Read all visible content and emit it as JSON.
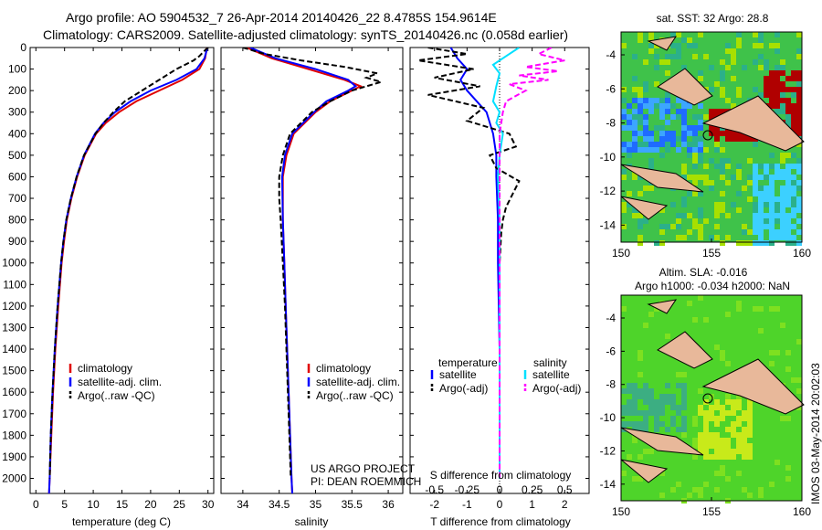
{
  "header": {
    "line1": "Argo profile: AO 5904532_7 26-Apr-2014 20140426_22 8.4785S 154.9614E",
    "line2": "Climatology: CARS2009. Satellite-adjusted climatology: synTS_20140426.nc (0.058d earlier)"
  },
  "colors": {
    "climatology": "#e00000",
    "satellite": "#0000ff",
    "argo": "#000000",
    "sat_salinity": "#00e0ff",
    "argo_adj_s": "#ff00ff"
  },
  "chart_data": [
    {
      "id": "temperature",
      "type": "line",
      "xlabel": "temperature (deg C)",
      "xlim": [
        -1,
        31
      ],
      "ylim": [
        0,
        2070
      ],
      "xticks": [
        0,
        5,
        10,
        15,
        20,
        25,
        30
      ],
      "xticklabels": [
        "0",
        "5",
        "10",
        "15",
        "20",
        "25",
        "30"
      ],
      "yticks": [
        0,
        100,
        200,
        300,
        400,
        500,
        600,
        700,
        800,
        900,
        1000,
        1100,
        1200,
        1300,
        1400,
        1500,
        1600,
        1700,
        1800,
        1900,
        2000
      ],
      "yticklabels": [
        "0",
        "100",
        "200",
        "300",
        "400",
        "500",
        "600",
        "700",
        "800",
        "900",
        "1000",
        "1100",
        "1200",
        "1300",
        "1400",
        "1500",
        "1600",
        "1700",
        "1800",
        "1900",
        "2000"
      ],
      "series": [
        {
          "name": "climatology",
          "color": "#e00000",
          "dash": false,
          "depth": [
            0,
            50,
            100,
            150,
            200,
            250,
            300,
            350,
            400,
            500,
            600,
            700,
            800,
            900,
            1000,
            1200,
            1400,
            1600,
            1800,
            2000,
            2070
          ],
          "values": [
            29.8,
            29.5,
            28.5,
            25.5,
            21.5,
            17.5,
            14.5,
            12.2,
            10.5,
            8.5,
            7.2,
            6.2,
            5.4,
            4.9,
            4.5,
            3.9,
            3.4,
            3.0,
            2.7,
            2.4,
            2.3
          ]
        },
        {
          "name": "satellite-adj. clim.",
          "color": "#0000ff",
          "dash": false,
          "depth": [
            0,
            50,
            100,
            150,
            200,
            250,
            300,
            350,
            400,
            500,
            600,
            700,
            800,
            900,
            1000,
            1200,
            1400,
            1600,
            1800,
            2000,
            2070
          ],
          "values": [
            29.9,
            29.4,
            28.0,
            24.5,
            20.0,
            16.5,
            13.8,
            11.8,
            10.3,
            8.4,
            7.1,
            6.1,
            5.3,
            4.8,
            4.4,
            3.8,
            3.3,
            2.9,
            2.6,
            2.4,
            2.3
          ]
        },
        {
          "name": "Argo(..raw -QC)",
          "color": "#000000",
          "dash": true,
          "depth": [
            0,
            20,
            40,
            60,
            80,
            100,
            150,
            200,
            250,
            300,
            350,
            400,
            500,
            600,
            700,
            800,
            900,
            1000,
            1200,
            1400,
            1600,
            1800,
            2000
          ],
          "values": [
            30.0,
            29.2,
            28.5,
            27.5,
            26.0,
            24.5,
            21.5,
            18.5,
            15.5,
            13.5,
            11.8,
            10.4,
            8.4,
            7.1,
            6.1,
            5.3,
            4.8,
            4.4,
            3.8,
            3.3,
            2.9,
            2.6,
            2.4
          ]
        }
      ],
      "legend": [
        "climatology",
        "satellite-adj. clim.",
        "Argo(..raw -QC)"
      ]
    },
    {
      "id": "salinity",
      "type": "line",
      "xlabel": "salinity",
      "xlim": [
        33.7,
        36.2
      ],
      "ylim": [
        0,
        2070
      ],
      "xticks": [
        34,
        34.5,
        35,
        35.5,
        36
      ],
      "xticklabels": [
        "34",
        "34.5",
        "35",
        "35.5",
        "36"
      ],
      "series": [
        {
          "name": "climatology",
          "color": "#e00000",
          "dash": false,
          "depth": [
            0,
            50,
            100,
            150,
            180,
            200,
            250,
            300,
            350,
            400,
            500,
            600,
            800,
            1000,
            1200,
            1400,
            1600,
            1800,
            2000,
            2070
          ],
          "values": [
            34.05,
            34.4,
            34.9,
            35.4,
            35.62,
            35.5,
            35.2,
            35.0,
            34.85,
            34.7,
            34.6,
            34.55,
            34.55,
            34.57,
            34.59,
            34.61,
            34.63,
            34.65,
            34.67,
            34.68
          ]
        },
        {
          "name": "satellite-adj. clim.",
          "color": "#0000ff",
          "dash": false,
          "depth": [
            0,
            50,
            100,
            150,
            180,
            200,
            250,
            300,
            350,
            400,
            500,
            600,
            800,
            1000,
            1200,
            1400,
            1600,
            1800,
            2000,
            2070
          ],
          "values": [
            34.1,
            34.45,
            35.0,
            35.45,
            35.55,
            35.45,
            35.15,
            34.98,
            34.83,
            34.68,
            34.58,
            34.54,
            34.55,
            34.57,
            34.59,
            34.61,
            34.63,
            34.65,
            34.67,
            34.68
          ]
        },
        {
          "name": "Argo(..raw -QC)",
          "color": "#000000",
          "dash": true,
          "depth": [
            0,
            30,
            60,
            90,
            120,
            140,
            160,
            200,
            250,
            300,
            350,
            400,
            500,
            600,
            700,
            800,
            1000,
            1200,
            1400,
            1600,
            1800,
            2000
          ],
          "values": [
            34.0,
            34.3,
            34.8,
            35.4,
            35.85,
            35.7,
            35.9,
            35.5,
            35.2,
            34.95,
            34.8,
            34.65,
            34.55,
            34.5,
            34.5,
            34.52,
            34.55,
            34.58,
            34.6,
            34.62,
            34.64,
            34.66
          ]
        }
      ],
      "legend": [
        "climatology",
        "satellite-adj. clim.",
        "Argo(..raw -QC)"
      ],
      "annotation": [
        "US ARGO PROJECT",
        "PI: DEAN ROEMMICH"
      ]
    },
    {
      "id": "differences",
      "type": "line",
      "xlabel": "T difference from climatology",
      "xlabel_top": "S difference from climatology",
      "xlim": [
        -2.75,
        2.75
      ],
      "ylim": [
        0,
        2070
      ],
      "xticks": [
        -2,
        -1,
        0,
        1,
        2
      ],
      "xticklabels": [
        "-2",
        "-1",
        "0",
        "1",
        "2"
      ],
      "sticks_pos": [
        -2,
        -1,
        0,
        1,
        2
      ],
      "sticklabels": [
        "-0.5",
        "-0.25",
        "0",
        "0.25",
        "0.5"
      ],
      "series": [
        {
          "name": "T satellite",
          "color": "#0000ff",
          "dash": false,
          "depth": [
            0,
            50,
            100,
            150,
            200,
            300,
            350,
            400,
            500,
            600,
            800,
            1000,
            1400,
            1800,
            2000
          ],
          "values": [
            -1.5,
            -1.3,
            -1.0,
            -1.2,
            -1.0,
            -0.4,
            -0.3,
            -0.2,
            -0.1,
            -0.1,
            -0.05,
            -0.05,
            0.0,
            0.0,
            0.0
          ]
        },
        {
          "name": "T Argo(-adj)",
          "color": "#000000",
          "dash": true,
          "depth": [
            0,
            30,
            60,
            100,
            140,
            180,
            220,
            280,
            340,
            400,
            460,
            500,
            560,
            620,
            680,
            740,
            800,
            860,
            1000,
            1200,
            1400,
            1600,
            1800,
            2000
          ],
          "values": [
            -2.2,
            -1.0,
            -2.5,
            -0.8,
            -2.0,
            -0.6,
            -2.2,
            -0.5,
            -1.0,
            0.3,
            0.5,
            -0.3,
            -0.1,
            0.6,
            0.4,
            0.2,
            0.1,
            0.05,
            0.0,
            0.0,
            0.0,
            0.0,
            0.0,
            0.0
          ]
        },
        {
          "name": "S satellite",
          "color": "#00e0ff",
          "dash": false,
          "depth": [
            0,
            40,
            80,
            120,
            180,
            250,
            300,
            350,
            400,
            500,
            600,
            800,
            1000,
            1400,
            1800,
            2000
          ],
          "values": [
            0.6,
            0.2,
            -0.2,
            0.0,
            -0.1,
            -0.2,
            0.0,
            -0.1,
            0.1,
            0.0,
            -0.05,
            0.0,
            0.0,
            0.0,
            0.0,
            0.0
          ]
        },
        {
          "name": "S Argo(-adj)",
          "color": "#ff00ff",
          "dash": true,
          "depth": [
            0,
            30,
            60,
            90,
            110,
            130,
            150,
            170,
            200,
            250,
            300,
            400,
            500,
            600,
            800,
            1000,
            1400,
            1800,
            2000
          ],
          "values": [
            1.6,
            1.2,
            2.0,
            0.8,
            1.8,
            0.6,
            1.5,
            0.3,
            0.8,
            0.2,
            0.1,
            0.0,
            0.0,
            0.0,
            0.0,
            0.0,
            0.0,
            0.0,
            0.0
          ]
        }
      ],
      "legend_headers": [
        "temperature",
        "salinity"
      ],
      "legend": [
        "satellite",
        "Argo(-adj)",
        "satellite",
        "Argo(-adj)"
      ]
    }
  ],
  "maps": {
    "sst": {
      "title": "sat. SST: 32 Argo: 28.8",
      "xticklabels": [
        "150",
        "155",
        "160"
      ],
      "yticklabels": [
        "-4",
        "-6",
        "-8",
        "-10",
        "-12",
        "-14"
      ]
    },
    "sla": {
      "title_line1": "Altim. SLA: -0.016",
      "title_line2": "Argo h1000: -0.034 h2000: NaN",
      "xticklabels": [
        "150",
        "155",
        "160"
      ],
      "yticklabels": [
        "-4",
        "-6",
        "-8",
        "-10",
        "-12",
        "-14"
      ]
    }
  },
  "side_text": "IMOS 03-May-2014 20:02:03"
}
